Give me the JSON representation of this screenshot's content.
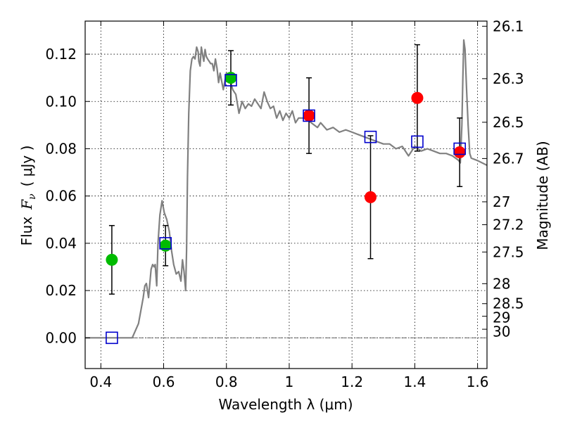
{
  "chart_data": {
    "type": "scatter",
    "xlabel": "Wavelength  λ (μm)",
    "ylabel": "Flux  Fν  ( μJy )",
    "ylabel_parts": {
      "prefix": "Flux",
      "symbol": "F",
      "subscript": "ν",
      "unit": "( μJy )"
    },
    "ylabel_right": "Magnitude (AB)",
    "xlim": [
      0.35,
      1.63
    ],
    "ylim": [
      -0.013,
      0.134
    ],
    "grid": true,
    "x_ticks": [
      {
        "value": 0.4,
        "label": "0.4"
      },
      {
        "value": 0.6,
        "label": "0.6"
      },
      {
        "value": 0.8,
        "label": "0.8"
      },
      {
        "value": 1.0,
        "label": "1"
      },
      {
        "value": 1.2,
        "label": "1.2"
      },
      {
        "value": 1.4,
        "label": "1.4"
      },
      {
        "value": 1.6,
        "label": "1.6"
      }
    ],
    "y_ticks": [
      {
        "value": 0.0,
        "label": "0.00"
      },
      {
        "value": 0.02,
        "label": "0.02"
      },
      {
        "value": 0.04,
        "label": "0.04"
      },
      {
        "value": 0.06,
        "label": "0.06"
      },
      {
        "value": 0.08,
        "label": "0.08"
      },
      {
        "value": 0.1,
        "label": "0.10"
      },
      {
        "value": 0.12,
        "label": "0.12"
      }
    ],
    "mag_ticks": [
      {
        "label": "26.1"
      },
      {
        "label": "26.3"
      },
      {
        "label": "26.5"
      },
      {
        "label": "26.7"
      },
      {
        "label": "27"
      },
      {
        "label": "27.2"
      },
      {
        "label": "27.5"
      },
      {
        "label": "28"
      },
      {
        "label": "28.5"
      },
      {
        "label": "29"
      },
      {
        "label": "30"
      }
    ],
    "series": [
      {
        "name": "model spectrum",
        "color": "#808080",
        "x": [
          0.35,
          0.5,
          0.52,
          0.535,
          0.54,
          0.545,
          0.552,
          0.56,
          0.565,
          0.57,
          0.573,
          0.578,
          0.582,
          0.588,
          0.595,
          0.602,
          0.61,
          0.618,
          0.625,
          0.632,
          0.64,
          0.648,
          0.655,
          0.66,
          0.665,
          0.67,
          0.673,
          0.676,
          0.68,
          0.685,
          0.69,
          0.695,
          0.7,
          0.705,
          0.71,
          0.712,
          0.716,
          0.72,
          0.724,
          0.728,
          0.732,
          0.736,
          0.74,
          0.745,
          0.75,
          0.755,
          0.76,
          0.765,
          0.77,
          0.775,
          0.78,
          0.79,
          0.8,
          0.81,
          0.82,
          0.83,
          0.84,
          0.85,
          0.86,
          0.87,
          0.88,
          0.89,
          0.9,
          0.91,
          0.92,
          0.93,
          0.94,
          0.95,
          0.96,
          0.97,
          0.98,
          0.99,
          1.0,
          1.01,
          1.02,
          1.03,
          1.05,
          1.07,
          1.09,
          1.1,
          1.12,
          1.14,
          1.16,
          1.18,
          1.2,
          1.22,
          1.24,
          1.26,
          1.28,
          1.3,
          1.32,
          1.34,
          1.36,
          1.38,
          1.4,
          1.42,
          1.44,
          1.46,
          1.48,
          1.5,
          1.52,
          1.53,
          1.54,
          1.545,
          1.55,
          1.553,
          1.556,
          1.56,
          1.565,
          1.57,
          1.575,
          1.58,
          1.6,
          1.63
        ],
        "y": [
          0.0,
          0.0,
          0.006,
          0.017,
          0.022,
          0.023,
          0.017,
          0.029,
          0.031,
          0.03,
          0.031,
          0.022,
          0.04,
          0.052,
          0.058,
          0.053,
          0.05,
          0.045,
          0.037,
          0.031,
          0.027,
          0.028,
          0.024,
          0.033,
          0.028,
          0.02,
          0.037,
          0.068,
          0.095,
          0.113,
          0.118,
          0.119,
          0.118,
          0.123,
          0.121,
          0.117,
          0.115,
          0.123,
          0.12,
          0.117,
          0.122,
          0.119,
          0.118,
          0.117,
          0.116,
          0.116,
          0.113,
          0.118,
          0.114,
          0.108,
          0.112,
          0.105,
          0.112,
          0.11,
          0.105,
          0.103,
          0.095,
          0.1,
          0.097,
          0.099,
          0.098,
          0.101,
          0.099,
          0.097,
          0.104,
          0.1,
          0.097,
          0.098,
          0.093,
          0.096,
          0.092,
          0.095,
          0.093,
          0.096,
          0.091,
          0.093,
          0.093,
          0.091,
          0.089,
          0.091,
          0.088,
          0.089,
          0.087,
          0.088,
          0.087,
          0.086,
          0.085,
          0.084,
          0.083,
          0.082,
          0.082,
          0.08,
          0.081,
          0.077,
          0.081,
          0.079,
          0.08,
          0.079,
          0.078,
          0.078,
          0.077,
          0.076,
          0.075,
          0.074,
          0.09,
          0.11,
          0.126,
          0.122,
          0.105,
          0.09,
          0.078,
          0.076,
          0.075,
          0.073
        ]
      }
    ],
    "observed_points": [
      {
        "x": 0.435,
        "y": 0.033,
        "yerr": 0.0145,
        "color": "#00bb00"
      },
      {
        "x": 0.606,
        "y": 0.039,
        "yerr": 0.0085,
        "color": "#00bb00"
      },
      {
        "x": 0.814,
        "y": 0.11,
        "yerr": 0.0115,
        "color": "#00bb00"
      },
      {
        "x": 1.063,
        "y": 0.094,
        "yerr": 0.016,
        "color": "#ff0000"
      },
      {
        "x": 1.259,
        "y": 0.0595,
        "yerr": 0.026,
        "color": "#ff0000"
      },
      {
        "x": 1.408,
        "y": 0.1015,
        "yerr": 0.0225,
        "color": "#ff0000"
      },
      {
        "x": 1.543,
        "y": 0.0785,
        "yerr": 0.0145,
        "color": "#ff0000"
      }
    ],
    "model_points": [
      {
        "x": 0.435,
        "y": 0.0
      },
      {
        "x": 0.606,
        "y": 0.04
      },
      {
        "x": 0.814,
        "y": 0.109
      },
      {
        "x": 1.063,
        "y": 0.094
      },
      {
        "x": 1.259,
        "y": 0.085
      },
      {
        "x": 1.408,
        "y": 0.083
      },
      {
        "x": 1.543,
        "y": 0.08
      }
    ],
    "model_point_color": "#0000cc"
  }
}
